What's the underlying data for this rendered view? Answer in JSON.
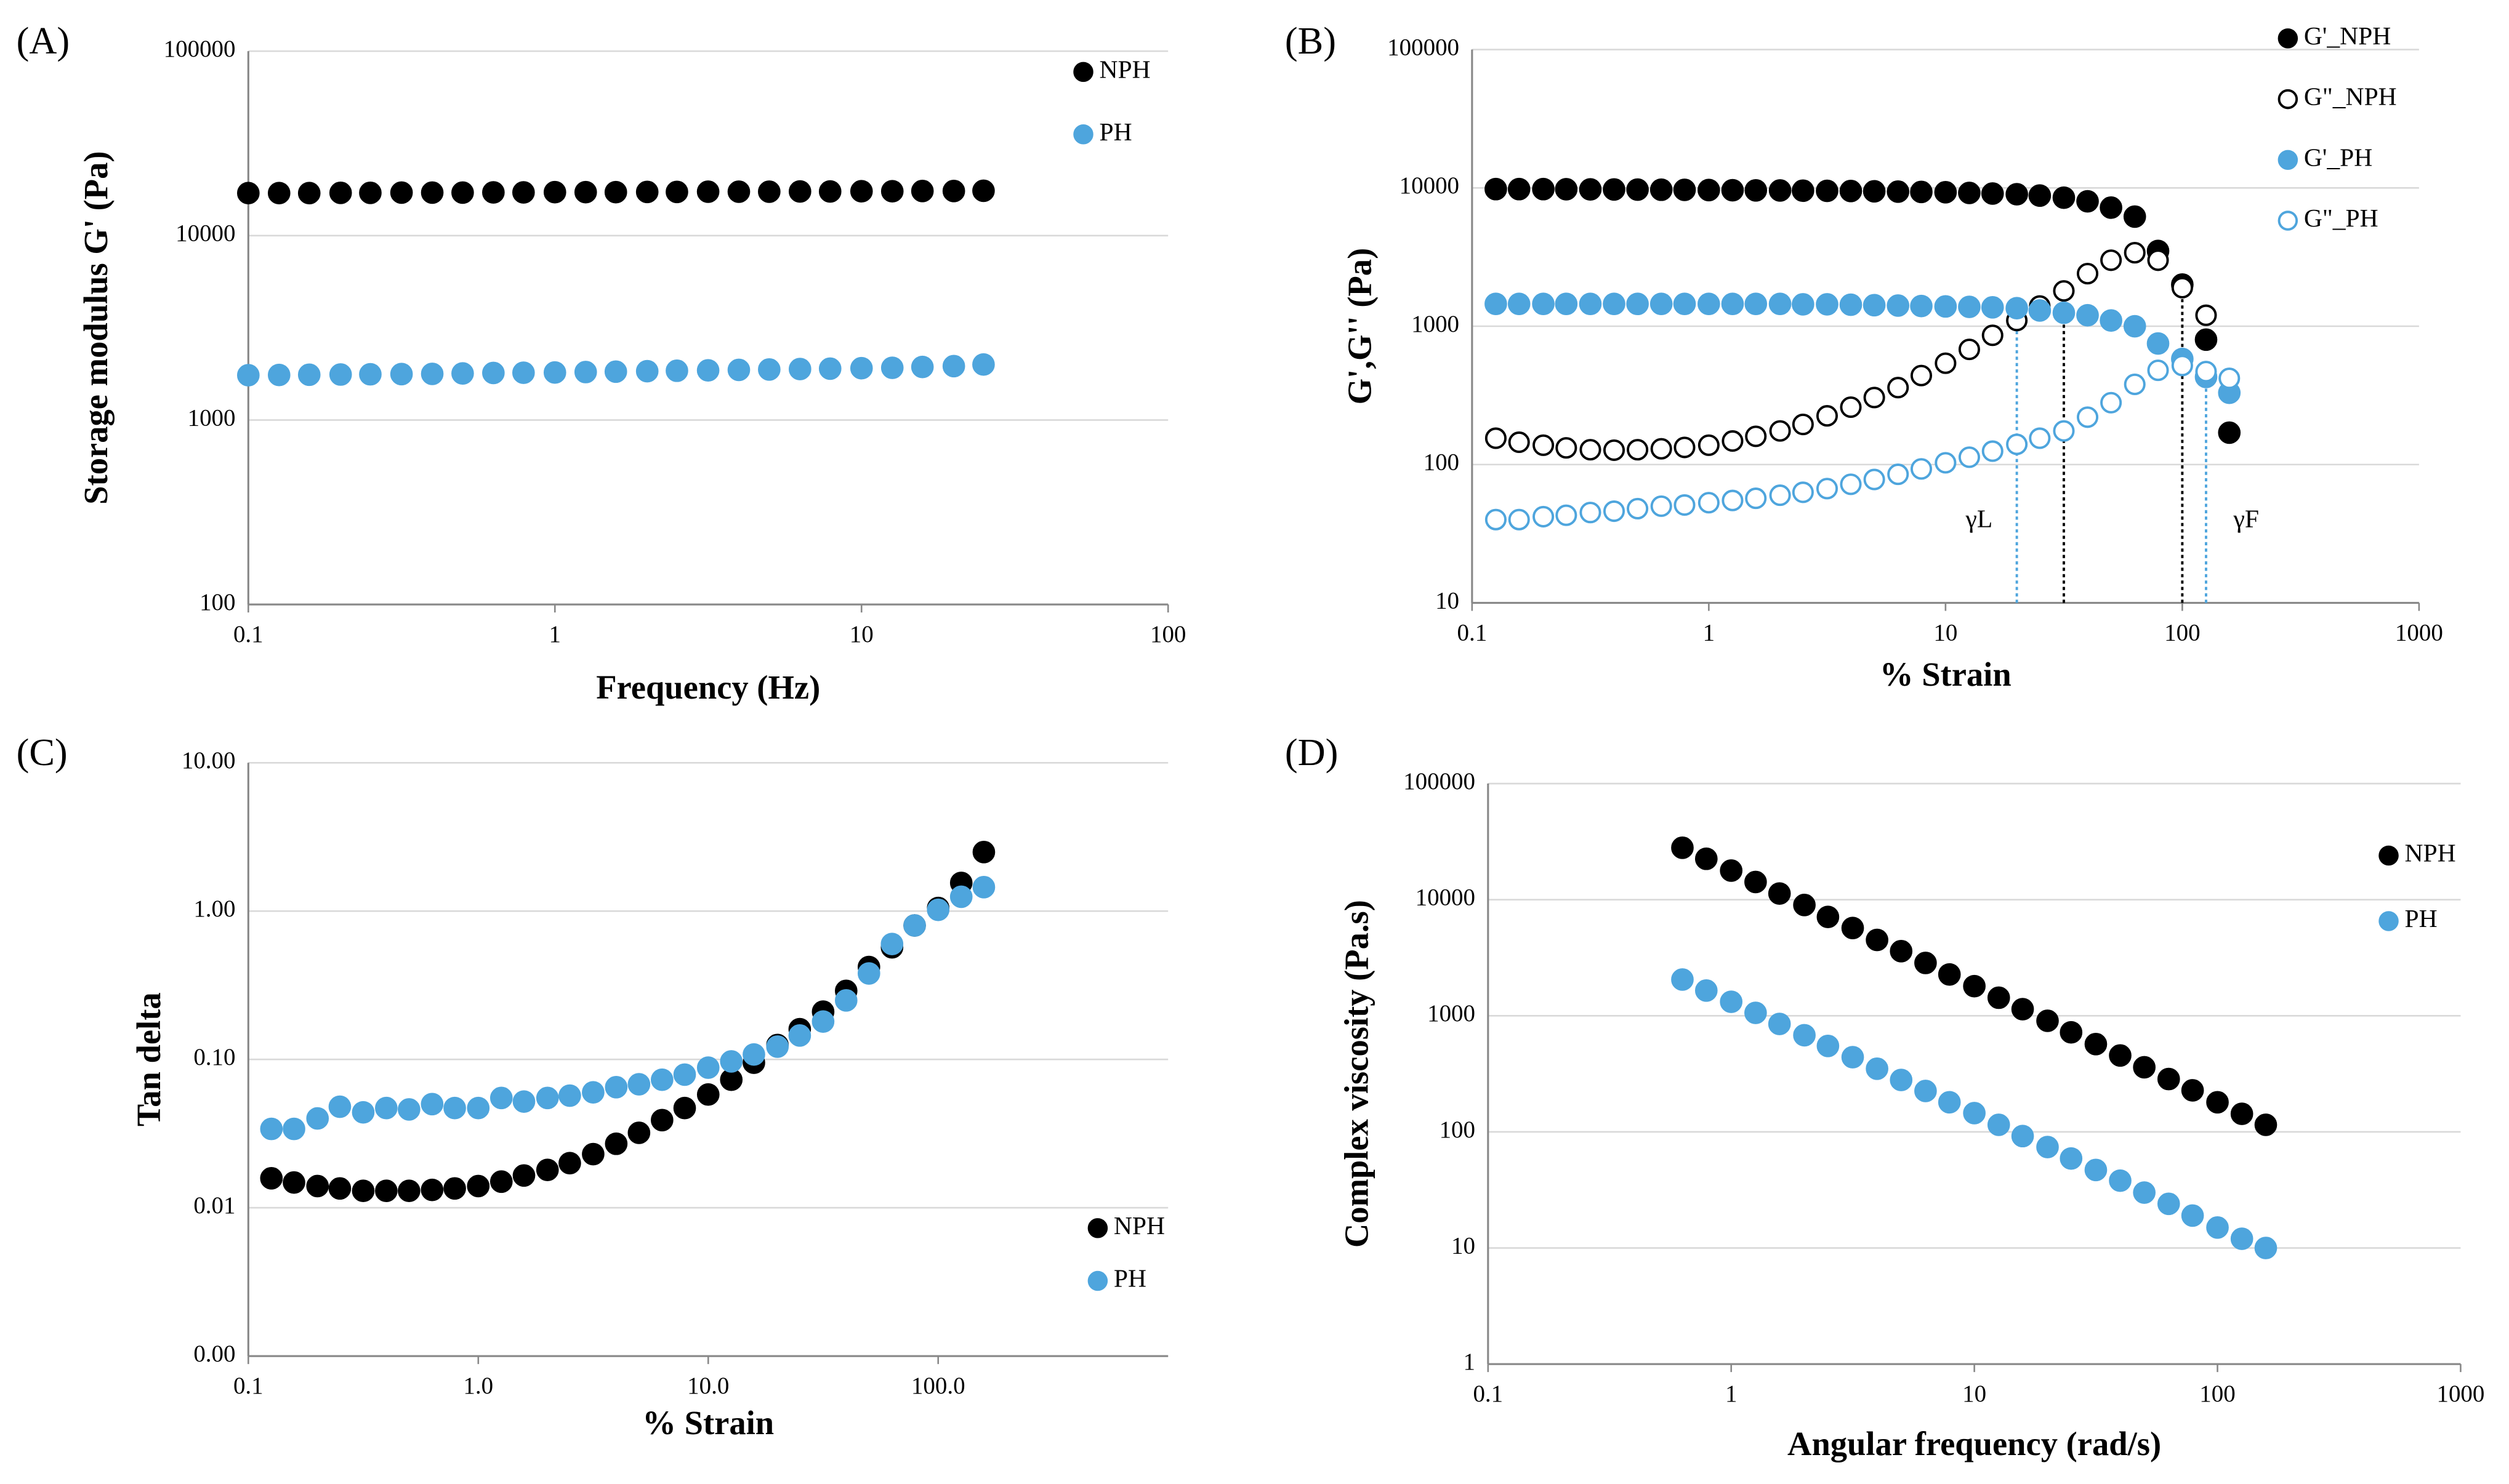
{
  "chart_data": [
    {
      "type": "scatter",
      "label": "(A)",
      "xlabel": "Frequency (Hz)",
      "ylabel": "Storage modulus G'  (Pa)",
      "xscale": "log",
      "yscale": "log",
      "grid": true,
      "legend": "upper right",
      "xlim": [
        0.1,
        100
      ],
      "ylim": [
        100,
        100000
      ],
      "xticks": [
        0.1,
        1,
        10,
        100
      ],
      "yticks": [
        100,
        1000,
        10000,
        100000
      ],
      "x": [
        0.1,
        0.126,
        0.158,
        0.2,
        0.25,
        0.316,
        0.398,
        0.5,
        0.63,
        0.79,
        1,
        1.26,
        1.58,
        2,
        2.5,
        3.16,
        3.98,
        5,
        6.3,
        7.9,
        10,
        12.6,
        15.8,
        20,
        25
      ],
      "series": [
        {
          "name": "NPH",
          "color": "#000000",
          "marker": "filled",
          "values": [
            17000,
            17000,
            17000,
            17050,
            17050,
            17100,
            17100,
            17100,
            17150,
            17150,
            17200,
            17200,
            17200,
            17250,
            17250,
            17300,
            17300,
            17300,
            17350,
            17350,
            17400,
            17400,
            17450,
            17450,
            17500
          ]
        },
        {
          "name": "PH",
          "color": "#4ea5dd",
          "marker": "filled",
          "values": [
            1750,
            1755,
            1760,
            1765,
            1770,
            1775,
            1780,
            1790,
            1800,
            1805,
            1810,
            1820,
            1830,
            1840,
            1850,
            1860,
            1870,
            1880,
            1890,
            1900,
            1910,
            1920,
            1940,
            1960,
            2000
          ]
        }
      ]
    },
    {
      "type": "scatter",
      "label": "(B)",
      "xlabel": "% Strain",
      "ylabel": "G',G'' (Pa)",
      "xscale": "log",
      "yscale": "log",
      "grid": true,
      "legend": "upper right",
      "xlim": [
        0.1,
        1000
      ],
      "ylim": [
        10,
        100000
      ],
      "xticks": [
        0.1,
        1,
        10,
        100,
        1000
      ],
      "yticks": [
        10,
        100,
        1000,
        10000,
        100000
      ],
      "x": [
        0.126,
        0.158,
        0.2,
        0.25,
        0.316,
        0.398,
        0.5,
        0.63,
        0.79,
        1,
        1.26,
        1.58,
        2,
        2.5,
        3.16,
        3.98,
        5,
        6.3,
        7.9,
        10,
        12.6,
        15.8,
        20,
        25,
        31.6,
        39.8,
        50,
        63,
        79,
        100,
        126,
        158
      ],
      "series": [
        {
          "name": "G'_NPH",
          "color": "#000000",
          "marker": "filled",
          "values": [
            9800,
            9800,
            9800,
            9780,
            9760,
            9740,
            9720,
            9700,
            9680,
            9650,
            9620,
            9600,
            9580,
            9550,
            9520,
            9500,
            9450,
            9400,
            9350,
            9300,
            9200,
            9100,
            9000,
            8800,
            8500,
            8000,
            7200,
            6200,
            3500,
            2000,
            800,
            170
          ]
        },
        {
          "name": "G\"_NPH",
          "color": "#000000",
          "marker": "open",
          "values": [
            155,
            145,
            138,
            132,
            128,
            127,
            128,
            130,
            133,
            138,
            148,
            160,
            175,
            195,
            225,
            260,
            305,
            360,
            440,
            540,
            680,
            860,
            1100,
            1400,
            1800,
            2400,
            3000,
            3400,
            3000,
            1900,
            1200,
            null
          ]
        },
        {
          "name": "G'_PH",
          "color": "#4ea5dd",
          "marker": "filled",
          "values": [
            1450,
            1450,
            1450,
            1450,
            1450,
            1450,
            1450,
            1450,
            1450,
            1450,
            1450,
            1450,
            1450,
            1440,
            1440,
            1430,
            1420,
            1410,
            1400,
            1390,
            1380,
            1370,
            1350,
            1300,
            1250,
            1200,
            1100,
            1000,
            750,
            580,
            430,
            330
          ]
        },
        {
          "name": "G\"_PH",
          "color": "#4ea5dd",
          "marker": "open",
          "values": [
            40,
            40,
            42,
            43,
            45,
            46,
            48,
            50,
            51,
            53,
            55,
            57,
            60,
            63,
            67,
            72,
            78,
            85,
            93,
            103,
            113,
            125,
            140,
            155,
            175,
            220,
            280,
            380,
            480,
            520,
            470,
            420
          ]
        }
      ],
      "reference_lines": [
        {
          "x": 20,
          "y": 1350,
          "color": "#4ea5dd"
        },
        {
          "x": 31.6,
          "y": 1800,
          "color": "#000000"
        },
        {
          "x": 100,
          "y": 2000,
          "color": "#000000"
        },
        {
          "x": 126,
          "y": 470,
          "color": "#4ea5dd"
        }
      ],
      "annotations": [
        "γL",
        "γF"
      ]
    },
    {
      "type": "scatter",
      "label": "(C)",
      "xlabel": "% Strain",
      "ylabel": "Tan delta",
      "xscale": "log",
      "yscale": "log",
      "grid": true,
      "legend": "lower right",
      "xlim": [
        0.1,
        1000
      ],
      "ylim": [
        0.001,
        10
      ],
      "xticks": [
        0.1,
        {
          "value": 1,
          "label": "1.0"
        },
        {
          "value": 10,
          "label": "10.0"
        },
        {
          "value": 100,
          "label": "100.0"
        }
      ],
      "yticks": [
        {
          "value": 0.001,
          "label": "0.00"
        },
        {
          "value": 0.01,
          "label": "0.01"
        },
        {
          "value": 0.1,
          "label": "0.10"
        },
        {
          "value": 1,
          "label": "1.00"
        },
        {
          "value": 10,
          "label": "10.00"
        }
      ],
      "x": [
        0.126,
        0.158,
        0.2,
        0.25,
        0.316,
        0.398,
        0.5,
        0.63,
        0.79,
        1,
        1.26,
        1.58,
        2,
        2.5,
        3.16,
        3.98,
        5,
        6.3,
        7.9,
        10,
        12.6,
        15.8,
        20,
        25,
        31.6,
        39.8,
        50,
        63,
        79,
        100,
        126,
        158
      ],
      "series": [
        {
          "name": "NPH",
          "color": "#000000",
          "marker": "filled",
          "values": [
            0.0158,
            0.0148,
            0.014,
            0.0135,
            0.013,
            0.013,
            0.013,
            0.0132,
            0.0135,
            0.014,
            0.015,
            0.0165,
            0.018,
            0.02,
            0.023,
            0.027,
            0.032,
            0.039,
            0.047,
            0.058,
            0.073,
            0.095,
            0.125,
            0.16,
            0.21,
            0.29,
            0.42,
            0.57,
            0.8,
            1.05,
            1.55,
            2.5
          ]
        },
        {
          "name": "PH",
          "color": "#4ea5dd",
          "marker": "filled",
          "values": [
            0.034,
            0.034,
            0.04,
            0.048,
            0.044,
            0.047,
            0.046,
            0.05,
            0.047,
            0.047,
            0.055,
            0.052,
            0.055,
            0.057,
            0.06,
            0.065,
            0.068,
            0.073,
            0.079,
            0.088,
            0.097,
            0.108,
            0.122,
            0.145,
            0.18,
            0.25,
            0.38,
            0.6,
            0.8,
            1.02,
            1.25,
            1.45
          ]
        }
      ]
    },
    {
      "type": "scatter",
      "label": "(D)",
      "xlabel": "Angular frequency (rad/s)",
      "ylabel": "Complex viscosity (Pa.s)",
      "xscale": "log",
      "yscale": "log",
      "grid": true,
      "legend": "upper right",
      "xlim": [
        0.1,
        1000
      ],
      "ylim": [
        1,
        100000
      ],
      "xticks": [
        0.1,
        1,
        10,
        100,
        1000
      ],
      "yticks": [
        1,
        10,
        100,
        1000,
        10000,
        100000
      ],
      "x": [
        0.63,
        0.79,
        1,
        1.26,
        1.58,
        2,
        2.5,
        3.16,
        3.98,
        5,
        6.3,
        7.9,
        10,
        12.6,
        15.8,
        20,
        25,
        31.6,
        39.8,
        50,
        63,
        79,
        100,
        126,
        158
      ],
      "series": [
        {
          "name": "NPH",
          "color": "#000000",
          "marker": "filled",
          "values": [
            28000,
            22500,
            17800,
            14200,
            11300,
            9000,
            7100,
            5700,
            4500,
            3600,
            2850,
            2270,
            1800,
            1430,
            1140,
            905,
            720,
            570,
            455,
            360,
            285,
            228,
            180,
            143,
            115
          ]
        },
        {
          "name": "PH",
          "color": "#4ea5dd",
          "marker": "filled",
          "values": [
            2050,
            1650,
            1320,
            1060,
            850,
            680,
            550,
            440,
            350,
            280,
            225,
            180,
            145,
            115,
            92,
            74,
            59,
            47,
            38,
            30,
            24,
            19,
            15,
            12,
            10
          ]
        }
      ]
    }
  ]
}
